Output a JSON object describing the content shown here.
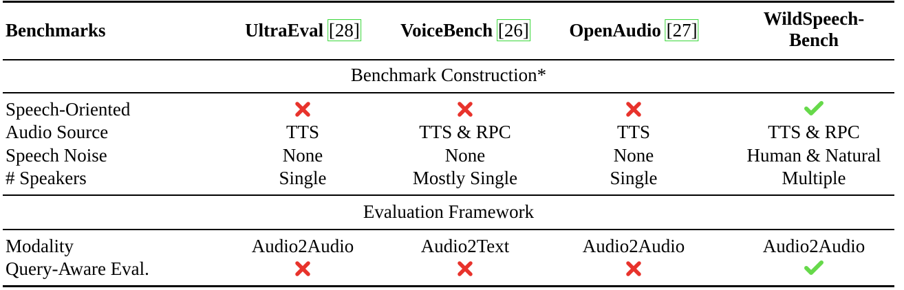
{
  "header": {
    "label": "Benchmarks",
    "columns": [
      {
        "name": "UltraEval",
        "cite": "[28]"
      },
      {
        "name": "VoiceBench",
        "cite": "[26]"
      },
      {
        "name": "OpenAudio",
        "cite": "[27]"
      },
      {
        "name_line1": "WildSpeech-",
        "name_line2": "Bench"
      }
    ]
  },
  "sections": [
    {
      "title": "Benchmark Construction*",
      "rows": [
        {
          "label": "Speech-Oriented",
          "values": [
            "cross",
            "cross",
            "cross",
            "check"
          ]
        },
        {
          "label": "Audio Source",
          "values": [
            "TTS",
            "TTS & RPC",
            "TTS",
            "TTS & RPC"
          ]
        },
        {
          "label": "Speech Noise",
          "values": [
            "None",
            "None",
            "None",
            "Human & Natural"
          ]
        },
        {
          "label": "# Speakers",
          "values": [
            "Single",
            "Mostly Single",
            "Single",
            "Multiple"
          ]
        }
      ]
    },
    {
      "title": "Evaluation Framework",
      "rows": [
        {
          "label": "Modality",
          "values": [
            "Audio2Audio",
            "Audio2Text",
            "Audio2Audio",
            "Audio2Audio"
          ]
        },
        {
          "label": "Query-Aware Eval.",
          "values": [
            "cross",
            "cross",
            "cross",
            "check"
          ]
        }
      ]
    }
  ],
  "icons": {
    "cross": "cross-mark-icon",
    "check": "check-mark-icon"
  },
  "colors": {
    "cross": "#e8332c",
    "check": "#66d94a",
    "citation_box": "#39d639"
  }
}
